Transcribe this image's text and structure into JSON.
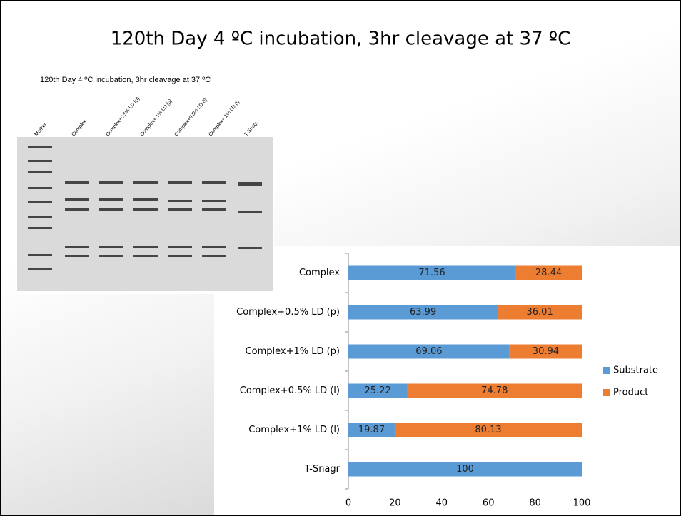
{
  "slide_title": "120th Day 4 ºC incubation,  3hr cleavage at 37 ºC",
  "gel": {
    "caption": "120th Day 4 ºC incubation,  3hr cleavage at 37 ºC",
    "lanes": [
      "Marker",
      "Complex",
      "Complex+0.5% LD (p)",
      "Complex+ 1% LD (p)",
      "Complex+0.5% LD (l)",
      "Complex+ 1% LD (l)",
      "T-Snagr"
    ]
  },
  "chart_data": {
    "type": "bar",
    "orientation": "horizontal",
    "stacked": true,
    "categories": [
      "Complex",
      "Complex+0.5% LD (p)",
      "Complex+1% LD (p)",
      "Complex+0.5% LD (l)",
      "Complex+1% LD (l)",
      "T-Snagr"
    ],
    "series": [
      {
        "name": "Substrate",
        "color": "#5b9bd5",
        "values": [
          71.56,
          63.99,
          69.06,
          25.22,
          19.87,
          100
        ]
      },
      {
        "name": "Product",
        "color": "#ed7d31",
        "values": [
          28.44,
          36.01,
          30.94,
          74.78,
          80.13,
          null
        ]
      }
    ],
    "xlim": [
      0,
      100
    ],
    "xticks": [
      0,
      20,
      40,
      60,
      80,
      100
    ],
    "legend": "right"
  }
}
